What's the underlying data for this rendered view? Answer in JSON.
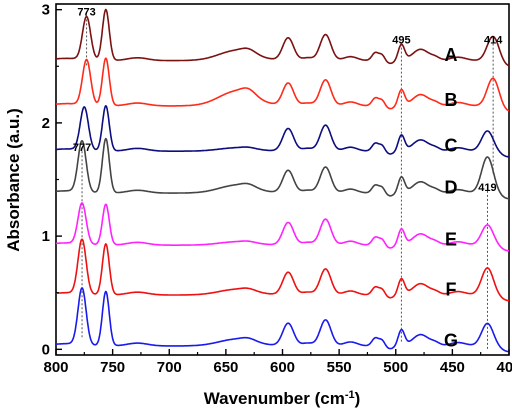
{
  "chart_data": {
    "type": "line",
    "title": "",
    "xlabel": "Wavenumber (cm",
    "xlabel_sup": "-1",
    "xlabel_close": ")",
    "ylabel": "Absorbance (a.u.)",
    "xlim": [
      800,
      400
    ],
    "ylim": [
      -0.05,
      3.05
    ],
    "x_ticks": [
      800,
      750,
      700,
      650,
      600,
      550,
      500,
      450,
      400
    ],
    "y_ticks": [
      0,
      1,
      2,
      3
    ],
    "grid": false,
    "legend": "none",
    "features": {
      "p773": 773,
      "p756": 756,
      "p640": 640,
      "p630": 630,
      "p595": 595,
      "p562": 562,
      "p540": 540,
      "p518": 518,
      "p512": 512,
      "p495": 495,
      "p478": 478,
      "p465": 465,
      "p445": 445,
      "p419": 419,
      "p414": 414
    },
    "series": [
      {
        "name": "A",
        "color": "#7a1212",
        "offset": 2.55,
        "peak1": 773,
        "peak1_h": 0.38,
        "peak2_h": 0.45,
        "bump_h": 0.09,
        "end_peak": 414,
        "end_h": 0.22
      },
      {
        "name": "B",
        "color": "#ff2a1a",
        "offset": 2.15,
        "peak1": 773,
        "peak1_h": 0.4,
        "peak2_h": 0.42,
        "bump_h": 0.13,
        "end_peak": 414,
        "end_h": 0.25
      },
      {
        "name": "C",
        "color": "#0d0d80",
        "offset": 1.75,
        "peak1": 775,
        "peak1_h": 0.38,
        "peak2_h": 0.4,
        "bump_h": 0.03,
        "end_peak": 419,
        "end_h": 0.18
      },
      {
        "name": "D",
        "color": "#444444",
        "offset": 1.38,
        "peak1": 777,
        "peak1_h": 0.45,
        "peak2_h": 0.48,
        "bump_h": 0.07,
        "end_peak": 419,
        "end_h": 0.32
      },
      {
        "name": "E",
        "color": "#ff22ff",
        "offset": 0.92,
        "peak1": 777,
        "peak1_h": 0.36,
        "peak2_h": 0.36,
        "bump_h": 0.03,
        "end_peak": 419,
        "end_h": 0.18
      },
      {
        "name": "F",
        "color": "#ee1111",
        "offset": 0.48,
        "peak1": 777,
        "peak1_h": 0.48,
        "peak2_h": 0.45,
        "bump_h": 0.05,
        "end_peak": 419,
        "end_h": 0.24
      },
      {
        "name": "G",
        "color": "#1a1aee",
        "offset": 0.03,
        "peak1": 777,
        "peak1_h": 0.5,
        "peak2_h": 0.48,
        "bump_h": 0.06,
        "end_peak": 419,
        "end_h": 0.2
      }
    ],
    "reference_lines": [
      {
        "x": 773,
        "y_top": 2.95,
        "y_bottom": 2.5
      },
      {
        "x": 777,
        "y_top": 1.75,
        "y_bottom": 0.1
      },
      {
        "x": 495,
        "y_top": 2.7,
        "y_bottom": 0.05
      },
      {
        "x": 414,
        "y_top": 2.7,
        "y_bottom": 1.55
      },
      {
        "x": 419,
        "y_top": 1.4,
        "y_bottom": 0.0
      }
    ],
    "annotations": [
      {
        "text": "773",
        "x": 773,
        "y": 2.95
      },
      {
        "text": "777",
        "x": 777,
        "y": 1.75
      },
      {
        "text": "495",
        "x": 495,
        "y": 2.7
      },
      {
        "text": "414",
        "x": 414,
        "y": 2.7
      },
      {
        "text": "419",
        "x": 419,
        "y": 1.4
      }
    ]
  }
}
